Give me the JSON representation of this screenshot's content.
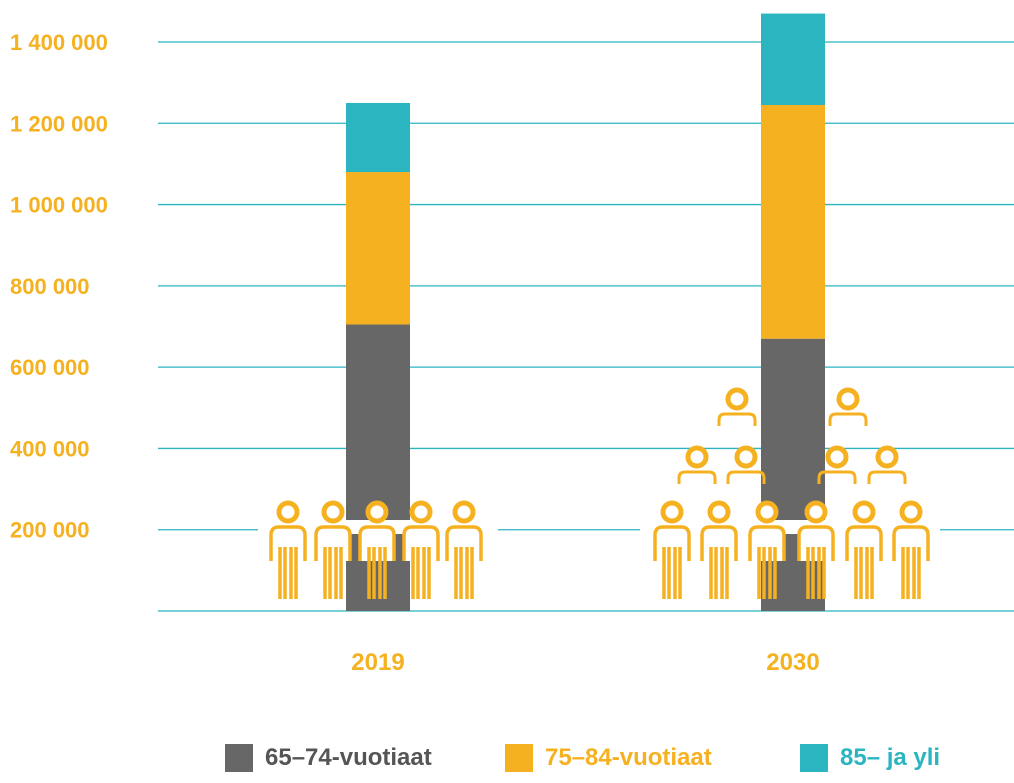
{
  "chart_data": {
    "type": "bar",
    "stacked": true,
    "categories": [
      "2019",
      "2030"
    ],
    "series": [
      {
        "name": "65–74-vuotiaat",
        "values": [
          705000,
          670000
        ],
        "color": "#676767"
      },
      {
        "name": "75–84-vuotiaat",
        "values": [
          375000,
          575000
        ],
        "color": "#f5b11f"
      },
      {
        "name": "85– ja yli",
        "values": [
          170000,
          225000
        ],
        "color": "#2bb5c0"
      }
    ],
    "yticks": [
      "200 000",
      "400 000",
      "600 000",
      "800 000",
      "1 000 000",
      "1 200 000",
      "1 400 000"
    ],
    "ylim": [
      0,
      1400000
    ],
    "grid": true,
    "legend_position": "bottom",
    "colors": {
      "tick_label": "#f5b11f",
      "category_label": "#f5b11f",
      "gridline": "#2bb5c0",
      "icon_stroke": "#f5b11f"
    },
    "decorations": {
      "people_icon_counts": [
        5,
        12
      ]
    }
  }
}
